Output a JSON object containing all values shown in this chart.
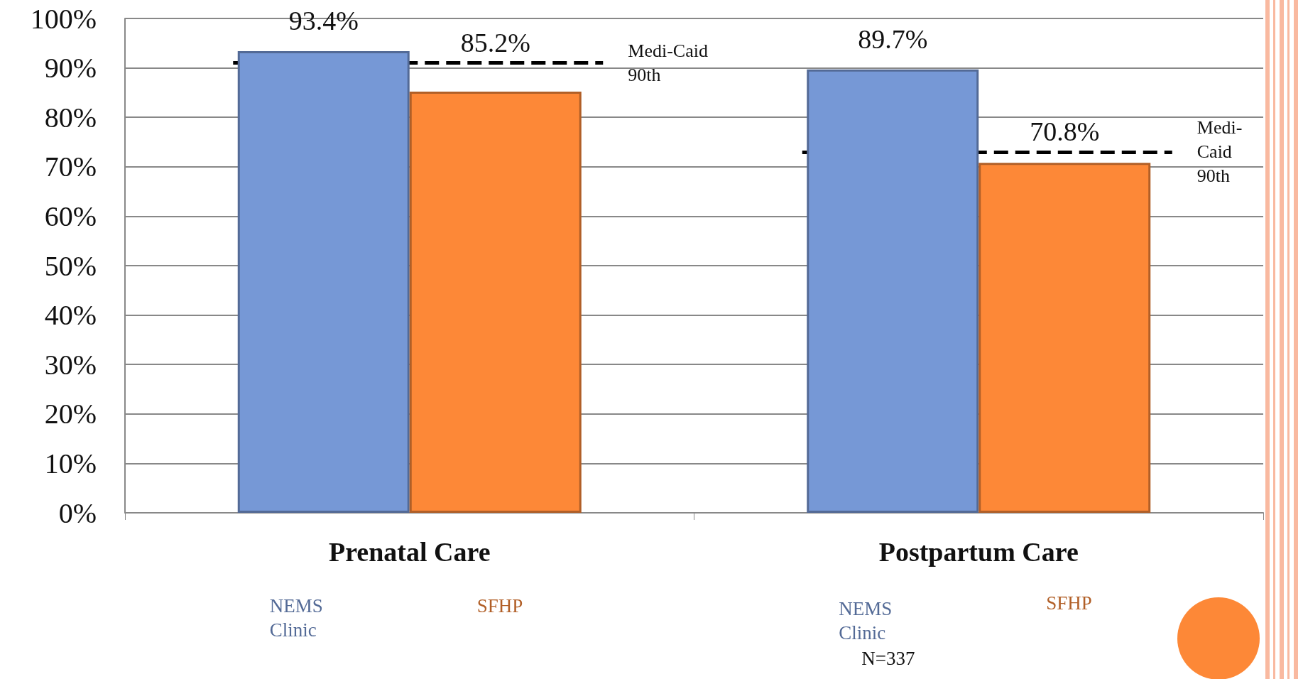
{
  "chart_data": {
    "type": "bar",
    "categories": [
      "Prenatal Care",
      "Postpartum Care"
    ],
    "series": [
      {
        "name": "NEMS Clinic",
        "color": "#7698d6",
        "values": [
          93.4,
          89.7
        ],
        "value_labels": [
          "93.4%",
          "89.7%"
        ]
      },
      {
        "name": "SFHP",
        "color": "#fd8837",
        "values": [
          85.2,
          70.8
        ],
        "value_labels": [
          "85.2%",
          "70.8%"
        ]
      }
    ],
    "ylim": [
      0,
      100
    ],
    "yticks": [
      {
        "value": 0,
        "label": "0%"
      },
      {
        "value": 10,
        "label": "10%"
      },
      {
        "value": 20,
        "label": "20%"
      },
      {
        "value": 30,
        "label": "30%"
      },
      {
        "value": 40,
        "label": "40%"
      },
      {
        "value": 50,
        "label": "50%"
      },
      {
        "value": 60,
        "label": "60%"
      },
      {
        "value": 70,
        "label": "70%"
      },
      {
        "value": 80,
        "label": "80%"
      },
      {
        "value": 90,
        "label": "90%"
      },
      {
        "value": 100,
        "label": "100%"
      }
    ],
    "grid": "y",
    "legend": false,
    "ref_lines": [
      {
        "axis": "y",
        "value": 91,
        "label": "Medi-Caid 90th",
        "line_style": "dashed",
        "color": "#000000"
      },
      {
        "axis": "y",
        "value": 73,
        "label": "Medi-Caid 90th",
        "line_style": "dashed",
        "color": "#000000"
      }
    ],
    "annotations": [
      "N=337"
    ]
  }
}
